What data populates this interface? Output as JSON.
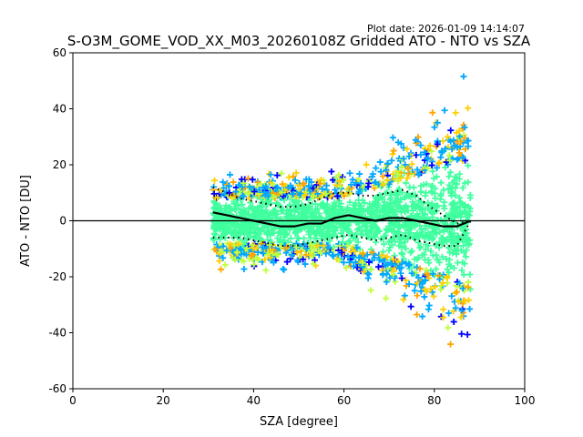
{
  "plot_date": "Plot date: 2026-01-09 14:14:07",
  "chart_data": {
    "type": "scatter",
    "title": "S-O3M_GOME_VOD_XX_M03_20260108Z Gridded ATO - NTO vs SZA",
    "xlabel": "SZA [degree]",
    "ylabel": "ATO - NTO [DU]",
    "xlim": [
      0,
      100
    ],
    "ylim": [
      -60,
      60
    ],
    "xticks": [
      0,
      20,
      40,
      60,
      80,
      100
    ],
    "yticks": [
      -60,
      -40,
      -20,
      0,
      20,
      40,
      60
    ],
    "zero_line": 0,
    "marker": "+",
    "density_colors": [
      "#0000ff",
      "#00a8ff",
      "#40ff9f",
      "#bfff40",
      "#ffd000",
      "#ffa500"
    ],
    "sza_range": [
      31,
      88
    ],
    "mean_profile": {
      "sza": [
        31,
        34,
        37,
        40,
        43,
        46,
        49,
        52,
        55,
        58,
        61,
        64,
        67,
        70,
        73,
        76,
        79,
        82,
        85,
        88
      ],
      "mean": [
        3,
        2,
        1,
        0,
        -1,
        -2,
        -2,
        -1,
        -1,
        1,
        2,
        1,
        0,
        1,
        1,
        0,
        -1,
        -2,
        -2,
        0
      ],
      "upper": [
        12,
        10,
        8,
        7,
        6,
        5,
        5,
        6,
        8,
        10,
        10,
        9,
        9,
        10,
        11,
        9,
        5,
        2,
        -1,
        0
      ],
      "lower": [
        -6,
        -6,
        -6,
        -7,
        -8,
        -9,
        -9,
        -8,
        -7,
        -6,
        -5,
        -6,
        -7,
        -6,
        -5,
        -7,
        -8,
        -9,
        -9,
        0
      ]
    }
  }
}
